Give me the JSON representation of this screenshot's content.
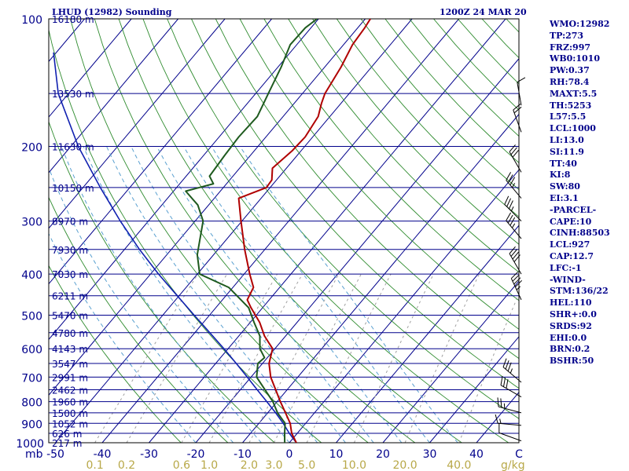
{
  "header": {
    "station": "LHUD (12982) Sounding",
    "time": "1200Z 24 MAR 20"
  },
  "indices": [
    "WMO:12982",
    "TP:273",
    "FRZ:997",
    "WB0:1010",
    "PW:0.37",
    "RH:78.4",
    "MAXT:5.5",
    "TH:5253",
    "L57:5.5",
    "LCL:1000",
    "LI:13.0",
    "SI:11.9",
    "TT:40",
    "KI:8",
    "SW:80",
    "EI:3.1",
    "-PARCEL-",
    "CAPE:10",
    "CINH:88503",
    "LCL:927",
    "CAP:12.7",
    "LFC:-1",
    "-WIND-",
    "STM:136/22",
    "HEL:110",
    "SHR+:0.0",
    "SRDS:92",
    "EHI:0.0",
    "BRN:0.2",
    "BSHR:50"
  ],
  "colors": {
    "isobar": "#00008b",
    "isotherm": "#00008b",
    "dry_adiabat": "#2e8b2e",
    "moist_adiabat": "#5aa0d0",
    "mixing_ratio": "#a0a0a0",
    "temperature": "#b00000",
    "dewpoint": "#1e5a1e",
    "parcel": "#1020b0",
    "wind": "#000000"
  },
  "chart_data": {
    "type": "skew-t",
    "pressure_unit": "mb",
    "pressure_range": [
      1000,
      100
    ],
    "pressure_ticks": [
      "100",
      "200",
      "300",
      "400",
      "500",
      "600",
      "700",
      "800",
      "900",
      "1000"
    ],
    "temp_unit": "C",
    "temp_ticks": [
      "-50",
      "-40",
      "-30",
      "-20",
      "-10",
      "0",
      "10",
      "20",
      "30",
      "40"
    ],
    "mixing_ratio_unit": "g/kg",
    "mixing_ratio_ticks": [
      "0.1",
      "0.2",
      "0.6",
      "1.0",
      "2.0",
      "3.0",
      "5.0",
      "10.0",
      "20.0",
      "40.0"
    ],
    "height_labels": [
      {
        "p": 100,
        "label": "16180 m"
      },
      {
        "p": 150,
        "label": "13530 m"
      },
      {
        "p": 200,
        "label": "11630 m"
      },
      {
        "p": 250,
        "label": "10150 m"
      },
      {
        "p": 300,
        "label": "8970 m"
      },
      {
        "p": 350,
        "label": "7930 m"
      },
      {
        "p": 400,
        "label": "7030 m"
      },
      {
        "p": 450,
        "label": "6211 m"
      },
      {
        "p": 500,
        "label": "5470 m"
      },
      {
        "p": 550,
        "label": "4780 m"
      },
      {
        "p": 600,
        "label": "4143 m"
      },
      {
        "p": 650,
        "label": "3547 m"
      },
      {
        "p": 700,
        "label": "2991 m"
      },
      {
        "p": 750,
        "label": "2462 m"
      },
      {
        "p": 800,
        "label": "1960 m"
      },
      {
        "p": 850,
        "label": "1500 m"
      },
      {
        "p": 900,
        "label": "1052 m"
      },
      {
        "p": 950,
        "label": "626 m"
      },
      {
        "p": 1000,
        "label": "217 m"
      }
    ],
    "temperature": [
      {
        "p": 1000,
        "t": 1.5
      },
      {
        "p": 950,
        "t": -1.2
      },
      {
        "p": 900,
        "t": -3.3
      },
      {
        "p": 850,
        "t": -6.2
      },
      {
        "p": 800,
        "t": -9.3
      },
      {
        "p": 700,
        "t": -15.8
      },
      {
        "p": 650,
        "t": -18.6
      },
      {
        "p": 600,
        "t": -20.5
      },
      {
        "p": 560,
        "t": -24.5
      },
      {
        "p": 520,
        "t": -28.0
      },
      {
        "p": 480,
        "t": -32.5
      },
      {
        "p": 460,
        "t": -34.7
      },
      {
        "p": 430,
        "t": -35.6
      },
      {
        "p": 400,
        "t": -38.8
      },
      {
        "p": 350,
        "t": -44.3
      },
      {
        "p": 300,
        "t": -50.2
      },
      {
        "p": 265,
        "t": -54.8
      },
      {
        "p": 250,
        "t": -50.8
      },
      {
        "p": 240,
        "t": -51.0
      },
      {
        "p": 225,
        "t": -53.0
      },
      {
        "p": 205,
        "t": -51.9
      },
      {
        "p": 190,
        "t": -51.6
      },
      {
        "p": 170,
        "t": -52.5
      },
      {
        "p": 158,
        "t": -54.2
      },
      {
        "p": 150,
        "t": -55.2
      },
      {
        "p": 130,
        "t": -56.5
      },
      {
        "p": 115,
        "t": -58.1
      },
      {
        "p": 105,
        "t": -58.5
      },
      {
        "p": 100,
        "t": -58.9
      }
    ],
    "dewpoint": [
      {
        "p": 1000,
        "t": -1.0
      },
      {
        "p": 950,
        "t": -2.7
      },
      {
        "p": 900,
        "t": -4.4
      },
      {
        "p": 850,
        "t": -7.9
      },
      {
        "p": 800,
        "t": -10.9
      },
      {
        "p": 700,
        "t": -18.8
      },
      {
        "p": 650,
        "t": -21.0
      },
      {
        "p": 630,
        "t": -20.6
      },
      {
        "p": 600,
        "t": -23.2
      },
      {
        "p": 560,
        "t": -25.5
      },
      {
        "p": 520,
        "t": -29.2
      },
      {
        "p": 480,
        "t": -33.0
      },
      {
        "p": 430,
        "t": -40.9
      },
      {
        "p": 400,
        "t": -49.5
      },
      {
        "p": 360,
        "t": -53.5
      },
      {
        "p": 300,
        "t": -58.3
      },
      {
        "p": 275,
        "t": -62.3
      },
      {
        "p": 255,
        "t": -67.4
      },
      {
        "p": 245,
        "t": -62.8
      },
      {
        "p": 235,
        "t": -65.0
      },
      {
        "p": 210,
        "t": -65.5
      },
      {
        "p": 190,
        "t": -65.8
      },
      {
        "p": 170,
        "t": -65.5
      },
      {
        "p": 150,
        "t": -67.3
      },
      {
        "p": 130,
        "t": -69.3
      },
      {
        "p": 115,
        "t": -71.4
      },
      {
        "p": 105,
        "t": -71.2
      },
      {
        "p": 100,
        "t": -70.3
      }
    ],
    "parcel": [
      {
        "p": 1000,
        "t": 1.5
      },
      {
        "p": 950,
        "t": -1.7
      },
      {
        "p": 900,
        "t": -4.8
      },
      {
        "p": 850,
        "t": -8.3
      },
      {
        "p": 800,
        "t": -12.2
      },
      {
        "p": 750,
        "t": -16.4
      },
      {
        "p": 700,
        "t": -20.8
      },
      {
        "p": 650,
        "t": -25.6
      },
      {
        "p": 600,
        "t": -30.9
      },
      {
        "p": 550,
        "t": -36.8
      },
      {
        "p": 500,
        "t": -43.3
      },
      {
        "p": 450,
        "t": -50.4
      },
      {
        "p": 400,
        "t": -58.3
      },
      {
        "p": 350,
        "t": -66.8
      },
      {
        "p": 300,
        "t": -76.0
      },
      {
        "p": 250,
        "t": -86.3
      },
      {
        "p": 200,
        "t": -98.4
      },
      {
        "p": 150,
        "t": -112.2
      },
      {
        "p": 120,
        "t": -120.6
      }
    ],
    "wind_barbs_unit": "kt",
    "wind_barbs": [
      {
        "p": 990,
        "dir": 290,
        "kt": 10
      },
      {
        "p": 910,
        "dir": 275,
        "kt": 15
      },
      {
        "p": 850,
        "dir": 285,
        "kt": 25
      },
      {
        "p": 780,
        "dir": 300,
        "kt": 30
      },
      {
        "p": 720,
        "dir": 310,
        "kt": 35
      },
      {
        "p": 460,
        "dir": 335,
        "kt": 45
      },
      {
        "p": 400,
        "dir": 330,
        "kt": 40
      },
      {
        "p": 330,
        "dir": 320,
        "kt": 35
      },
      {
        "p": 300,
        "dir": 315,
        "kt": 35
      },
      {
        "p": 265,
        "dir": 320,
        "kt": 35
      },
      {
        "p": 230,
        "dir": 330,
        "kt": 30
      },
      {
        "p": 185,
        "dir": 340,
        "kt": 20
      },
      {
        "p": 160,
        "dir": 350,
        "kt": 10
      }
    ]
  }
}
